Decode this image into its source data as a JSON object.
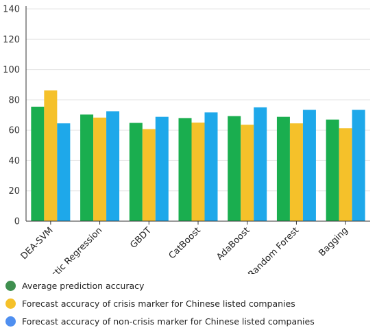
{
  "chart_data": {
    "type": "bar",
    "categories": [
      "DEA-SVM",
      "Logistic Regression",
      "GBDT",
      "CatBoost",
      "AdaBoost",
      "Random Forest",
      "Bagging"
    ],
    "series": [
      {
        "name": "Average prediction accuracy",
        "color": "#1aae4f",
        "legend_color": "#3f8f4f",
        "values": [
          75.5,
          70.3,
          64.8,
          68.0,
          69.3,
          68.8,
          67.0
        ]
      },
      {
        "name": "Forecast accuracy of crisis marker for Chinese listed companies",
        "color": "#f5c12a",
        "legend_color": "#f5c12a",
        "values": [
          86.2,
          68.3,
          60.7,
          65.0,
          63.6,
          64.5,
          61.3
        ]
      },
      {
        "name": "Forecast accuracy of non-crisis marker for Chinese listed companies",
        "color": "#1ea8ea",
        "legend_color": "#4f8ff0",
        "values": [
          64.5,
          72.5,
          68.8,
          71.7,
          75.1,
          73.4,
          73.4
        ]
      }
    ],
    "ylim": [
      0,
      140
    ],
    "yticks": [
      0,
      20,
      40,
      60,
      80,
      100,
      120,
      140
    ],
    "grid": true,
    "legend_position": "bottom-left"
  }
}
